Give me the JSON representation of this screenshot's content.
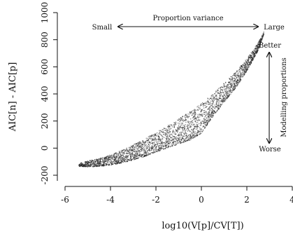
{
  "chart_data": {
    "type": "scatter",
    "title": "",
    "xlabel": "log10(V[p]/CV[T])",
    "ylabel": "AIC[n] - AIC[p]",
    "xlim": [
      -6.2,
      4
    ],
    "ylim": [
      -200,
      1000
    ],
    "xticks": [
      -6,
      -4,
      -2,
      0,
      2,
      4
    ],
    "yticks": [
      -200,
      0,
      200,
      400,
      600,
      800,
      1000
    ],
    "x_tick_labels": [
      "-6",
      "-4",
      "-2",
      "0",
      "2",
      "4"
    ],
    "y_tick_labels": [
      "-200",
      "0",
      "200",
      "400",
      "600",
      "800",
      "1000"
    ],
    "grid": false,
    "point_color": "#222222",
    "series": [
      {
        "cloud_envelope": {
          "x": [
            -5.4,
            -5.0,
            -4.5,
            -4.0,
            -3.5,
            -3.0,
            -2.5,
            -2.0,
            -1.5,
            -1.0,
            -0.5,
            0.0,
            0.5,
            1.0,
            1.5,
            2.0,
            2.5,
            2.75
          ],
          "upper": [
            -110,
            -95,
            -75,
            -50,
            -15,
            25,
            70,
            115,
            165,
            215,
            270,
            330,
            400,
            480,
            560,
            660,
            780,
            860
          ],
          "lower": [
            -135,
            -138,
            -135,
            -125,
            -110,
            -88,
            -62,
            -30,
            0,
            30,
            60,
            110,
            230,
            340,
            440,
            570,
            720,
            840
          ]
        }
      }
    ]
  },
  "annotations": {
    "small_label": "Small",
    "variance_label": "Proportion variance",
    "large_label": "Large",
    "better_label": "Better",
    "worse_label": "Worse",
    "modelling_label": "Modelling proportions"
  }
}
